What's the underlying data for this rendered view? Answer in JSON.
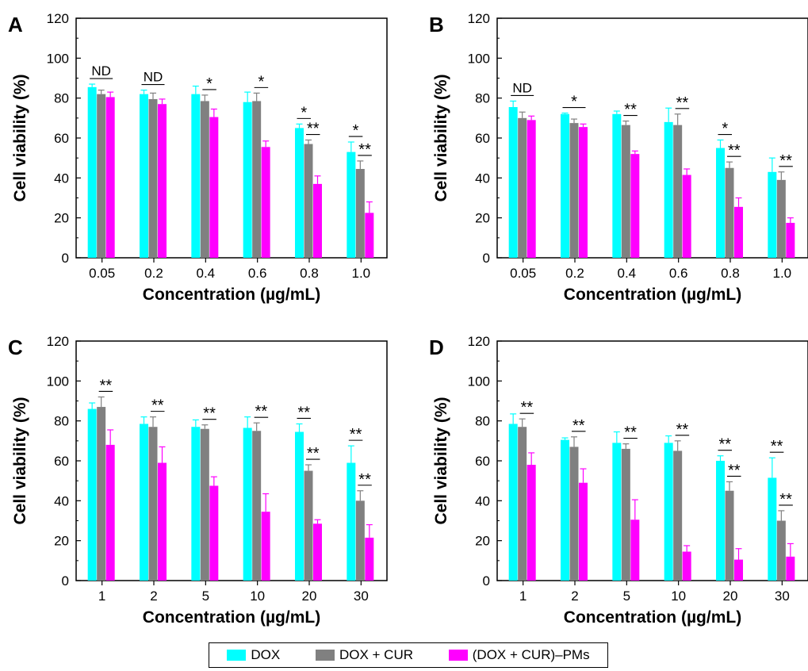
{
  "colors": {
    "series": [
      "#00ffff",
      "#808080",
      "#ff00ff"
    ]
  },
  "legend": {
    "items": [
      {
        "label": "DOX",
        "color": "#00ffff"
      },
      {
        "label": "DOX + CUR",
        "color": "#808080"
      },
      {
        "label": "(DOX + CUR)–PMs",
        "color": "#ff00ff"
      }
    ]
  },
  "chart_data": [
    {
      "type": "bar",
      "panel_label": "A",
      "xlabel": "Concentration (µg/mL)",
      "ylabel": "Cell viability (%)",
      "ylim": [
        0,
        120
      ],
      "yticks": [
        0,
        20,
        40,
        60,
        80,
        100,
        120
      ],
      "categories": [
        "0.05",
        "0.2",
        "0.4",
        "0.6",
        "0.8",
        "1.0"
      ],
      "series": [
        {
          "name": "DOX",
          "values": [
            85.5,
            82,
            82,
            78,
            65,
            53
          ],
          "errors": [
            1.5,
            2,
            4,
            5,
            2,
            5
          ]
        },
        {
          "name": "DOX + CUR",
          "values": [
            82,
            79.5,
            78.5,
            78.5,
            57,
            44.5
          ],
          "errors": [
            2,
            3,
            3,
            4,
            2,
            4
          ]
        },
        {
          "name": "(DOX + CUR)–PMs",
          "values": [
            80.5,
            77,
            70.5,
            55.5,
            37,
            22.5
          ],
          "errors": [
            2.5,
            2.5,
            4,
            3,
            4,
            5.5
          ]
        }
      ],
      "annotations": [
        {
          "category": "0.05",
          "text": "ND",
          "pair": [
            0,
            2
          ]
        },
        {
          "category": "0.2",
          "text": "ND",
          "pair": [
            0,
            2
          ]
        },
        {
          "category": "0.4",
          "text": "*",
          "pair": [
            1,
            2
          ]
        },
        {
          "category": "0.6",
          "text": "*",
          "pair": [
            1,
            2
          ]
        },
        {
          "category": "0.8",
          "text": "*",
          "pair": [
            0,
            1
          ]
        },
        {
          "category": "0.8",
          "text": "**",
          "pair": [
            1,
            2
          ]
        },
        {
          "category": "1.0",
          "text": "*",
          "pair": [
            0,
            1
          ]
        },
        {
          "category": "1.0",
          "text": "**",
          "pair": [
            1,
            2
          ]
        }
      ]
    },
    {
      "type": "bar",
      "panel_label": "B",
      "xlabel": "Concentration (µg/mL)",
      "ylabel": "Cell viability (%)",
      "ylim": [
        0,
        120
      ],
      "yticks": [
        0,
        20,
        40,
        60,
        80,
        100,
        120
      ],
      "categories": [
        "0.05",
        "0.2",
        "0.4",
        "0.6",
        "0.8",
        "1.0"
      ],
      "series": [
        {
          "name": "DOX",
          "values": [
            75.5,
            72,
            72,
            68,
            55,
            43
          ],
          "errors": [
            3,
            0.5,
            1.5,
            7,
            4,
            7
          ]
        },
        {
          "name": "DOX + CUR",
          "values": [
            70,
            67.5,
            66.5,
            66.5,
            45,
            39
          ],
          "errors": [
            3,
            2,
            2,
            5.5,
            3,
            4
          ]
        },
        {
          "name": "(DOX + CUR)–PMs",
          "values": [
            69,
            65.5,
            52,
            41.5,
            25.5,
            17.5
          ],
          "errors": [
            2,
            1.5,
            1.5,
            3,
            4.5,
            2.5
          ]
        }
      ],
      "annotations": [
        {
          "category": "0.05",
          "text": "ND",
          "pair": [
            0,
            2
          ]
        },
        {
          "category": "0.2",
          "text": "*",
          "pair": [
            0,
            2
          ]
        },
        {
          "category": "0.4",
          "text": "**",
          "pair": [
            1,
            2
          ]
        },
        {
          "category": "0.6",
          "text": "**",
          "pair": [
            1,
            2
          ]
        },
        {
          "category": "0.8",
          "text": "*",
          "pair": [
            0,
            1
          ]
        },
        {
          "category": "0.8",
          "text": "**",
          "pair": [
            1,
            2
          ]
        },
        {
          "category": "1.0",
          "text": "**",
          "pair": [
            1,
            2
          ]
        }
      ]
    },
    {
      "type": "bar",
      "panel_label": "C",
      "xlabel": "Concentration (µg/mL)",
      "ylabel": "Cell viability (%)",
      "ylim": [
        0,
        120
      ],
      "yticks": [
        0,
        20,
        40,
        60,
        80,
        100,
        120
      ],
      "categories": [
        "1",
        "2",
        "5",
        "10",
        "20",
        "30"
      ],
      "series": [
        {
          "name": "DOX",
          "values": [
            86,
            78.5,
            77,
            76.5,
            74.5,
            59
          ],
          "errors": [
            3,
            3.5,
            3.5,
            5.5,
            4,
            8.5
          ]
        },
        {
          "name": "DOX + CUR",
          "values": [
            87,
            77,
            76,
            75,
            55,
            40
          ],
          "errors": [
            5,
            5,
            2,
            4,
            3,
            5
          ]
        },
        {
          "name": "(DOX + CUR)–PMs",
          "values": [
            68,
            59,
            47.5,
            34.5,
            28.5,
            21.5
          ],
          "errors": [
            7.5,
            8,
            4.5,
            9,
            2,
            6.5
          ]
        }
      ],
      "annotations": [
        {
          "category": "1",
          "text": "**",
          "pair": [
            1,
            2
          ]
        },
        {
          "category": "2",
          "text": "**",
          "pair": [
            1,
            2
          ]
        },
        {
          "category": "5",
          "text": "**",
          "pair": [
            1,
            2
          ]
        },
        {
          "category": "10",
          "text": "**",
          "pair": [
            1,
            2
          ]
        },
        {
          "category": "20",
          "text": "**",
          "pair": [
            0,
            1
          ]
        },
        {
          "category": "20",
          "text": "**",
          "pair": [
            1,
            2
          ]
        },
        {
          "category": "30",
          "text": "**",
          "pair": [
            0,
            1
          ]
        },
        {
          "category": "30",
          "text": "**",
          "pair": [
            1,
            2
          ]
        }
      ]
    },
    {
      "type": "bar",
      "panel_label": "D",
      "xlabel": "Concentration (µg/mL)",
      "ylabel": "Cell viability (%)",
      "ylim": [
        0,
        120
      ],
      "yticks": [
        0,
        20,
        40,
        60,
        80,
        100,
        120
      ],
      "categories": [
        "1",
        "2",
        "5",
        "10",
        "20",
        "30"
      ],
      "series": [
        {
          "name": "DOX",
          "values": [
            78.5,
            70.5,
            69,
            69,
            60,
            51.5
          ],
          "errors": [
            5,
            1,
            5.5,
            3.5,
            2.5,
            10
          ]
        },
        {
          "name": "DOX + CUR",
          "values": [
            77,
            67,
            66,
            65,
            45,
            30
          ],
          "errors": [
            4,
            5,
            2.5,
            5,
            4.5,
            5
          ]
        },
        {
          "name": "(DOX + CUR)–PMs",
          "values": [
            58,
            49,
            30.5,
            14.5,
            10.5,
            12
          ],
          "errors": [
            6,
            7,
            10,
            3,
            5.5,
            6.5
          ]
        }
      ],
      "annotations": [
        {
          "category": "1",
          "text": "**",
          "pair": [
            1,
            2
          ]
        },
        {
          "category": "2",
          "text": "**",
          "pair": [
            1,
            2
          ]
        },
        {
          "category": "5",
          "text": "**",
          "pair": [
            1,
            2
          ]
        },
        {
          "category": "10",
          "text": "**",
          "pair": [
            1,
            2
          ]
        },
        {
          "category": "20",
          "text": "**",
          "pair": [
            0,
            1
          ]
        },
        {
          "category": "20",
          "text": "**",
          "pair": [
            1,
            2
          ]
        },
        {
          "category": "30",
          "text": "**",
          "pair": [
            0,
            1
          ]
        },
        {
          "category": "30",
          "text": "**",
          "pair": [
            1,
            2
          ]
        }
      ]
    }
  ]
}
